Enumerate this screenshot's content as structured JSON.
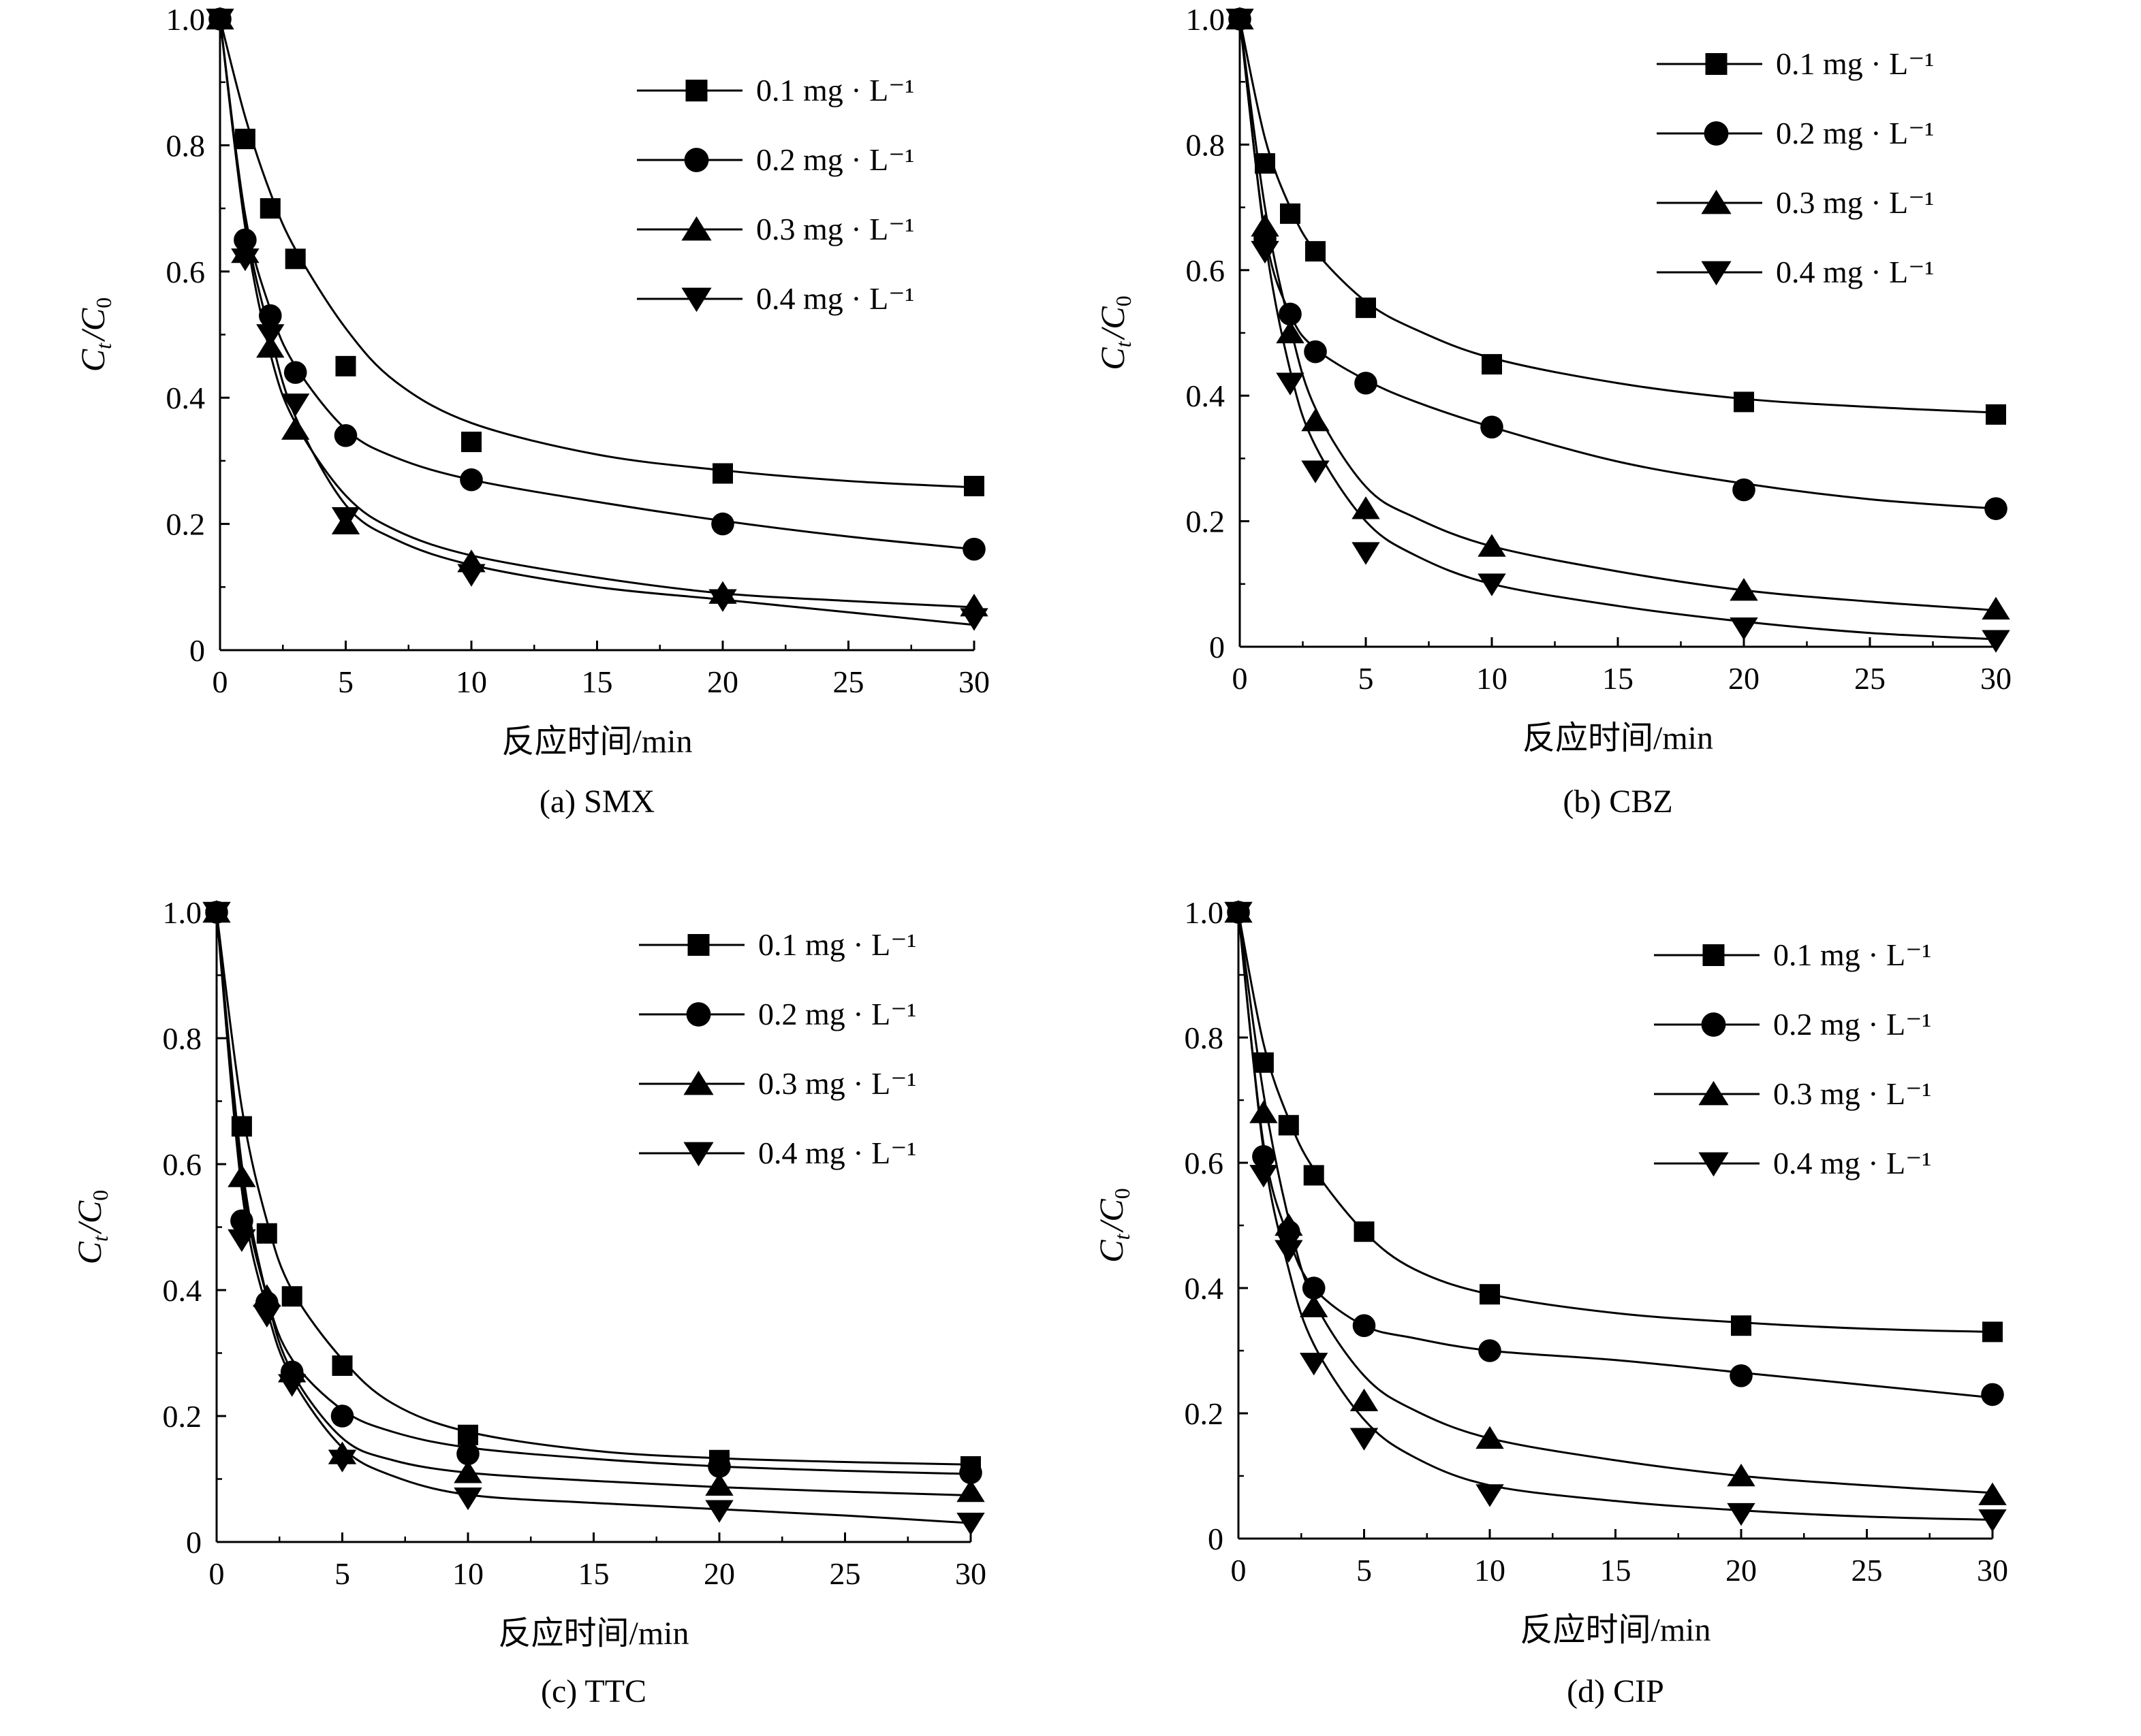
{
  "figure": {
    "background": "#ffffff",
    "ink": "#000000",
    "ylabel_main": "C",
    "ylabel_sub1": "t",
    "ylabel_sep": "/C",
    "ylabel_sub2": "0"
  },
  "chart_data": [
    {
      "type": "line",
      "caption": "(a) SMX",
      "xlabel": "反应时间/min",
      "ylabel": "Ct/C0",
      "xlim": [
        0,
        30
      ],
      "ylim": [
        0,
        1.0
      ],
      "xticks": [
        "0",
        "5",
        "10",
        "15",
        "20",
        "25",
        "30"
      ],
      "yticks": [
        "0",
        "0.2",
        "0.4",
        "0.6",
        "0.8",
        "1.0"
      ],
      "legend_position": "top-right",
      "x": [
        0,
        1,
        2,
        3,
        5,
        10,
        20,
        30
      ],
      "series": [
        {
          "name": "0.1 mg · L⁻¹",
          "marker": "square",
          "values": [
            1.0,
            0.81,
            0.7,
            0.62,
            0.45,
            0.33,
            0.28,
            0.26
          ],
          "fit": [
            [
              0,
              1.0
            ],
            [
              1,
              0.845
            ],
            [
              2,
              0.725
            ],
            [
              3,
              0.635
            ],
            [
              5,
              0.51
            ],
            [
              7,
              0.425
            ],
            [
              10,
              0.36
            ],
            [
              15,
              0.31
            ],
            [
              20,
              0.285
            ],
            [
              25,
              0.268
            ],
            [
              30,
              0.258
            ]
          ]
        },
        {
          "name": "0.2 mg · L⁻¹",
          "marker": "circle",
          "values": [
            1.0,
            0.65,
            0.53,
            0.44,
            0.34,
            0.27,
            0.2,
            0.16
          ],
          "fit": [
            [
              0,
              1.0
            ],
            [
              1,
              0.69
            ],
            [
              2,
              0.54
            ],
            [
              3,
              0.45
            ],
            [
              5,
              0.35
            ],
            [
              7,
              0.305
            ],
            [
              10,
              0.27
            ],
            [
              15,
              0.235
            ],
            [
              20,
              0.205
            ],
            [
              25,
              0.18
            ],
            [
              30,
              0.16
            ]
          ]
        },
        {
          "name": "0.3 mg · L⁻¹",
          "marker": "triangle-up",
          "values": [
            1.0,
            0.63,
            0.48,
            0.35,
            0.2,
            0.14,
            0.09,
            0.07
          ],
          "fit": [
            [
              0,
              1.0
            ],
            [
              1,
              0.67
            ],
            [
              2,
              0.47
            ],
            [
              3,
              0.36
            ],
            [
              5,
              0.245
            ],
            [
              7,
              0.19
            ],
            [
              10,
              0.15
            ],
            [
              15,
              0.115
            ],
            [
              20,
              0.09
            ],
            [
              25,
              0.078
            ],
            [
              30,
              0.068
            ]
          ]
        },
        {
          "name": "0.4 mg · L⁻¹",
          "marker": "triangle-down",
          "values": [
            1.0,
            0.62,
            0.5,
            0.39,
            0.21,
            0.12,
            0.08,
            0.05
          ],
          "fit": [
            [
              0,
              1.0
            ],
            [
              1,
              0.68
            ],
            [
              2,
              0.5
            ],
            [
              3,
              0.37
            ],
            [
              5,
              0.23
            ],
            [
              7,
              0.175
            ],
            [
              10,
              0.135
            ],
            [
              15,
              0.1
            ],
            [
              20,
              0.08
            ],
            [
              25,
              0.06
            ],
            [
              30,
              0.04
            ]
          ]
        }
      ]
    },
    {
      "type": "line",
      "caption": "(b) CBZ",
      "xlabel": "反应时间/min",
      "ylabel": "Ct/C0",
      "xlim": [
        0,
        30
      ],
      "ylim": [
        0,
        1.0
      ],
      "xticks": [
        "0",
        "5",
        "10",
        "15",
        "20",
        "25",
        "30"
      ],
      "yticks": [
        "0",
        "0.2",
        "0.4",
        "0.6",
        "0.8",
        "1.0"
      ],
      "legend_position": "top-right",
      "x": [
        0,
        1,
        2,
        3,
        5,
        10,
        20,
        30
      ],
      "series": [
        {
          "name": "0.1 mg · L⁻¹",
          "marker": "square",
          "values": [
            1.0,
            0.77,
            0.69,
            0.63,
            0.54,
            0.45,
            0.39,
            0.37
          ],
          "fit": [
            [
              0,
              1.0
            ],
            [
              1,
              0.81
            ],
            [
              2,
              0.7
            ],
            [
              3,
              0.63
            ],
            [
              5,
              0.55
            ],
            [
              7,
              0.505
            ],
            [
              10,
              0.46
            ],
            [
              15,
              0.42
            ],
            [
              20,
              0.395
            ],
            [
              25,
              0.382
            ],
            [
              30,
              0.373
            ]
          ]
        },
        {
          "name": "0.2 mg · L⁻¹",
          "marker": "circle",
          "values": [
            1.0,
            0.65,
            0.53,
            0.47,
            0.42,
            0.35,
            0.25,
            0.22
          ],
          "fit": [
            [
              0,
              1.0
            ],
            [
              1,
              0.66
            ],
            [
              2,
              0.53
            ],
            [
              3,
              0.475
            ],
            [
              5,
              0.425
            ],
            [
              7,
              0.39
            ],
            [
              10,
              0.35
            ],
            [
              15,
              0.295
            ],
            [
              20,
              0.26
            ],
            [
              25,
              0.235
            ],
            [
              30,
              0.22
            ]
          ]
        },
        {
          "name": "0.3 mg · L⁻¹",
          "marker": "triangle-up",
          "values": [
            1.0,
            0.67,
            0.5,
            0.36,
            0.22,
            0.16,
            0.09,
            0.06
          ],
          "fit": [
            [
              0,
              1.0
            ],
            [
              1,
              0.7
            ],
            [
              2,
              0.51
            ],
            [
              3,
              0.38
            ],
            [
              5,
              0.255
            ],
            [
              7,
              0.205
            ],
            [
              10,
              0.16
            ],
            [
              15,
              0.12
            ],
            [
              20,
              0.09
            ],
            [
              25,
              0.072
            ],
            [
              30,
              0.058
            ]
          ]
        },
        {
          "name": "0.4 mg · L⁻¹",
          "marker": "triangle-down",
          "values": [
            1.0,
            0.63,
            0.42,
            0.28,
            0.15,
            0.1,
            0.03,
            0.01
          ],
          "fit": [
            [
              0,
              1.0
            ],
            [
              1,
              0.65
            ],
            [
              2,
              0.44
            ],
            [
              3,
              0.32
            ],
            [
              5,
              0.2
            ],
            [
              7,
              0.145
            ],
            [
              10,
              0.1
            ],
            [
              15,
              0.065
            ],
            [
              20,
              0.04
            ],
            [
              25,
              0.022
            ],
            [
              30,
              0.012
            ]
          ]
        }
      ]
    },
    {
      "type": "line",
      "caption": "(c) TTC",
      "xlabel": "反应时间/min",
      "ylabel": "Ct/C0",
      "xlim": [
        0,
        30
      ],
      "ylim": [
        0,
        1.0
      ],
      "xticks": [
        "0",
        "5",
        "10",
        "15",
        "20",
        "25",
        "30"
      ],
      "yticks": [
        "0",
        "0.2",
        "0.4",
        "0.6",
        "0.8",
        "1.0"
      ],
      "legend_position": "top-right",
      "x": [
        0,
        1,
        2,
        3,
        5,
        10,
        20,
        30
      ],
      "series": [
        {
          "name": "0.1 mg · L⁻¹",
          "marker": "square",
          "values": [
            1.0,
            0.66,
            0.49,
            0.39,
            0.28,
            0.17,
            0.13,
            0.12
          ],
          "fit": [
            [
              0,
              1.0
            ],
            [
              1,
              0.69
            ],
            [
              2,
              0.51
            ],
            [
              3,
              0.4
            ],
            [
              5,
              0.29
            ],
            [
              7,
              0.22
            ],
            [
              10,
              0.175
            ],
            [
              15,
              0.145
            ],
            [
              20,
              0.133
            ],
            [
              25,
              0.127
            ],
            [
              30,
              0.123
            ]
          ]
        },
        {
          "name": "0.2 mg · L⁻¹",
          "marker": "circle",
          "values": [
            1.0,
            0.51,
            0.38,
            0.27,
            0.2,
            0.14,
            0.12,
            0.11
          ],
          "fit": [
            [
              0,
              1.0
            ],
            [
              1,
              0.58
            ],
            [
              2,
              0.39
            ],
            [
              3,
              0.29
            ],
            [
              5,
              0.21
            ],
            [
              7,
              0.175
            ],
            [
              10,
              0.15
            ],
            [
              15,
              0.132
            ],
            [
              20,
              0.12
            ],
            [
              25,
              0.113
            ],
            [
              30,
              0.108
            ]
          ]
        },
        {
          "name": "0.3 mg · L⁻¹",
          "marker": "triangle-up",
          "values": [
            1.0,
            0.58,
            0.39,
            0.27,
            0.14,
            0.11,
            0.09,
            0.08
          ],
          "fit": [
            [
              0,
              1.0
            ],
            [
              1,
              0.6
            ],
            [
              2,
              0.39
            ],
            [
              3,
              0.27
            ],
            [
              5,
              0.165
            ],
            [
              7,
              0.13
            ],
            [
              10,
              0.11
            ],
            [
              15,
              0.097
            ],
            [
              20,
              0.087
            ],
            [
              25,
              0.08
            ],
            [
              30,
              0.074
            ]
          ]
        },
        {
          "name": "0.4 mg · L⁻¹",
          "marker": "triangle-down",
          "values": [
            1.0,
            0.48,
            0.36,
            0.25,
            0.13,
            0.07,
            0.05,
            0.03
          ],
          "fit": [
            [
              0,
              1.0
            ],
            [
              1,
              0.56
            ],
            [
              2,
              0.37
            ],
            [
              3,
              0.26
            ],
            [
              5,
              0.15
            ],
            [
              7,
              0.105
            ],
            [
              10,
              0.075
            ],
            [
              15,
              0.062
            ],
            [
              20,
              0.052
            ],
            [
              25,
              0.042
            ],
            [
              30,
              0.03
            ]
          ]
        }
      ]
    },
    {
      "type": "line",
      "caption": "(d) CIP",
      "xlabel": "反应时间/min",
      "ylabel": "Ct/C0",
      "xlim": [
        0,
        30
      ],
      "ylim": [
        0,
        1.0
      ],
      "xticks": [
        "0",
        "5",
        "10",
        "15",
        "20",
        "25",
        "30"
      ],
      "yticks": [
        "0",
        "0.2",
        "0.4",
        "0.6",
        "0.8",
        "1.0"
      ],
      "legend_position": "top-right",
      "x": [
        0,
        1,
        2,
        3,
        5,
        10,
        20,
        30
      ],
      "series": [
        {
          "name": "0.1 mg · L⁻¹",
          "marker": "square",
          "values": [
            1.0,
            0.76,
            0.66,
            0.58,
            0.49,
            0.39,
            0.34,
            0.33
          ],
          "fit": [
            [
              0,
              1.0
            ],
            [
              1,
              0.79
            ],
            [
              2,
              0.67
            ],
            [
              3,
              0.59
            ],
            [
              5,
              0.49
            ],
            [
              7,
              0.43
            ],
            [
              10,
              0.39
            ],
            [
              15,
              0.36
            ],
            [
              20,
              0.345
            ],
            [
              25,
              0.335
            ],
            [
              30,
              0.33
            ]
          ]
        },
        {
          "name": "0.2 mg · L⁻¹",
          "marker": "circle",
          "values": [
            1.0,
            0.61,
            0.49,
            0.4,
            0.34,
            0.3,
            0.26,
            0.23
          ],
          "fit": [
            [
              0,
              1.0
            ],
            [
              1,
              0.63
            ],
            [
              2,
              0.48
            ],
            [
              3,
              0.4
            ],
            [
              5,
              0.34
            ],
            [
              7,
              0.32
            ],
            [
              10,
              0.3
            ],
            [
              15,
              0.285
            ],
            [
              20,
              0.265
            ],
            [
              25,
              0.245
            ],
            [
              30,
              0.225
            ]
          ]
        },
        {
          "name": "0.3 mg · L⁻¹",
          "marker": "triangle-up",
          "values": [
            1.0,
            0.68,
            0.5,
            0.37,
            0.22,
            0.16,
            0.1,
            0.07
          ],
          "fit": [
            [
              0,
              1.0
            ],
            [
              1,
              0.71
            ],
            [
              2,
              0.51
            ],
            [
              3,
              0.38
            ],
            [
              5,
              0.26
            ],
            [
              7,
              0.205
            ],
            [
              10,
              0.16
            ],
            [
              15,
              0.125
            ],
            [
              20,
              0.1
            ],
            [
              25,
              0.085
            ],
            [
              30,
              0.073
            ]
          ]
        },
        {
          "name": "0.4 mg · L⁻¹",
          "marker": "triangle-down",
          "values": [
            1.0,
            0.58,
            0.46,
            0.28,
            0.16,
            0.07,
            0.04,
            0.03
          ],
          "fit": [
            [
              0,
              1.0
            ],
            [
              1,
              0.62
            ],
            [
              2,
              0.43
            ],
            [
              3,
              0.31
            ],
            [
              5,
              0.19
            ],
            [
              7,
              0.13
            ],
            [
              10,
              0.085
            ],
            [
              15,
              0.06
            ],
            [
              20,
              0.045
            ],
            [
              25,
              0.035
            ],
            [
              30,
              0.03
            ]
          ]
        }
      ]
    }
  ]
}
